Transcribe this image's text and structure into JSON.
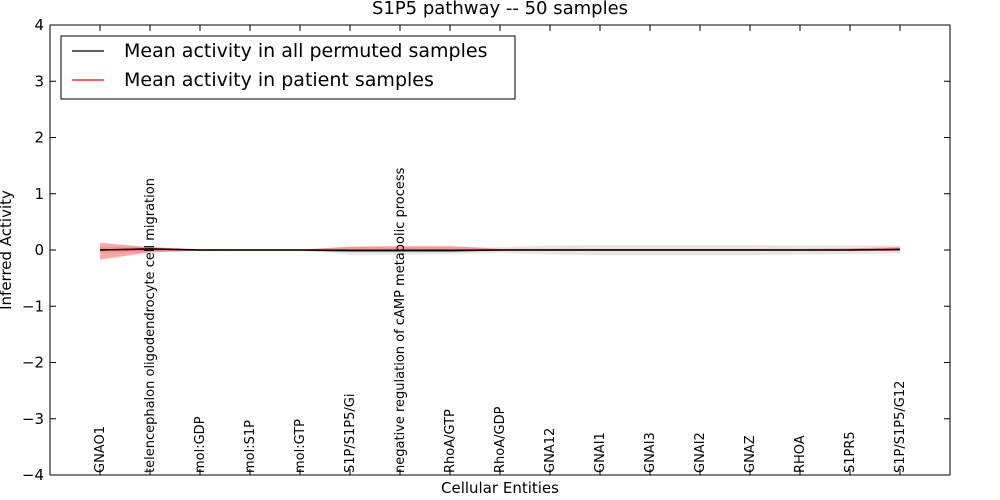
{
  "chart_data": {
    "type": "line",
    "title": "S1P5 pathway -- 50 samples",
    "xlabel": "Cellular Entities",
    "ylabel": "Inferred Activity",
    "ylim": [
      -4,
      4
    ],
    "yticks": [
      4,
      3,
      2,
      1,
      0,
      -1,
      -2,
      -3,
      -4
    ],
    "ytick_labels": [
      "4",
      "3",
      "2",
      "1",
      "0",
      "−1",
      "−2",
      "−3",
      "−4"
    ],
    "legend_position": "top-left",
    "categories": [
      "GNAO1",
      "telencephalon oligodendrocyte cell migration",
      "mol:GDP",
      "mol:S1P",
      "mol:GTP",
      "S1P/S1P5/Gi",
      "negative regulation of cAMP metabolic process",
      "RhoA/GTP",
      "RhoA/GDP",
      "GNA12",
      "GNAI1",
      "GNAI3",
      "GNAI2",
      "GNAZ",
      "RHOA",
      "S1PR5",
      "S1P/S1P5/G12"
    ],
    "series": [
      {
        "name": "Mean activity in all permuted samples",
        "color": "#000000",
        "values": [
          0.0,
          0.02,
          0.0,
          0.0,
          0.0,
          -0.01,
          -0.01,
          -0.01,
          0.0,
          0.0,
          0.0,
          0.0,
          0.0,
          0.0,
          0.0,
          0.0,
          0.01
        ],
        "band_low": [
          -0.05,
          -0.04,
          -0.02,
          -0.01,
          -0.01,
          -0.08,
          -0.08,
          -0.07,
          -0.05,
          -0.08,
          -0.09,
          -0.09,
          -0.09,
          -0.09,
          -0.08,
          -0.07,
          -0.06
        ],
        "band_high": [
          0.05,
          0.06,
          0.02,
          0.01,
          0.01,
          0.05,
          0.05,
          0.05,
          0.05,
          0.08,
          0.09,
          0.09,
          0.09,
          0.09,
          0.08,
          0.08,
          0.08
        ],
        "band_color": "#c8c8c8"
      },
      {
        "name": "Mean activity in patient samples",
        "color": "#ff0000",
        "values": [
          0.0,
          0.01,
          0.0,
          0.0,
          0.0,
          0.0,
          0.0,
          0.0,
          0.0,
          0.0,
          0.0,
          0.0,
          0.0,
          0.0,
          0.0,
          0.0,
          0.01
        ],
        "band_low": [
          -0.17,
          -0.04,
          -0.01,
          -0.01,
          -0.01,
          -0.03,
          -0.03,
          -0.03,
          -0.01,
          -0.01,
          -0.01,
          -0.01,
          -0.01,
          -0.01,
          -0.01,
          -0.01,
          -0.02
        ],
        "band_high": [
          0.13,
          0.05,
          0.01,
          0.01,
          0.01,
          0.06,
          0.07,
          0.07,
          0.02,
          0.02,
          0.02,
          0.02,
          0.02,
          0.02,
          0.02,
          0.03,
          0.05
        ],
        "band_color": "#ff0000"
      }
    ]
  }
}
